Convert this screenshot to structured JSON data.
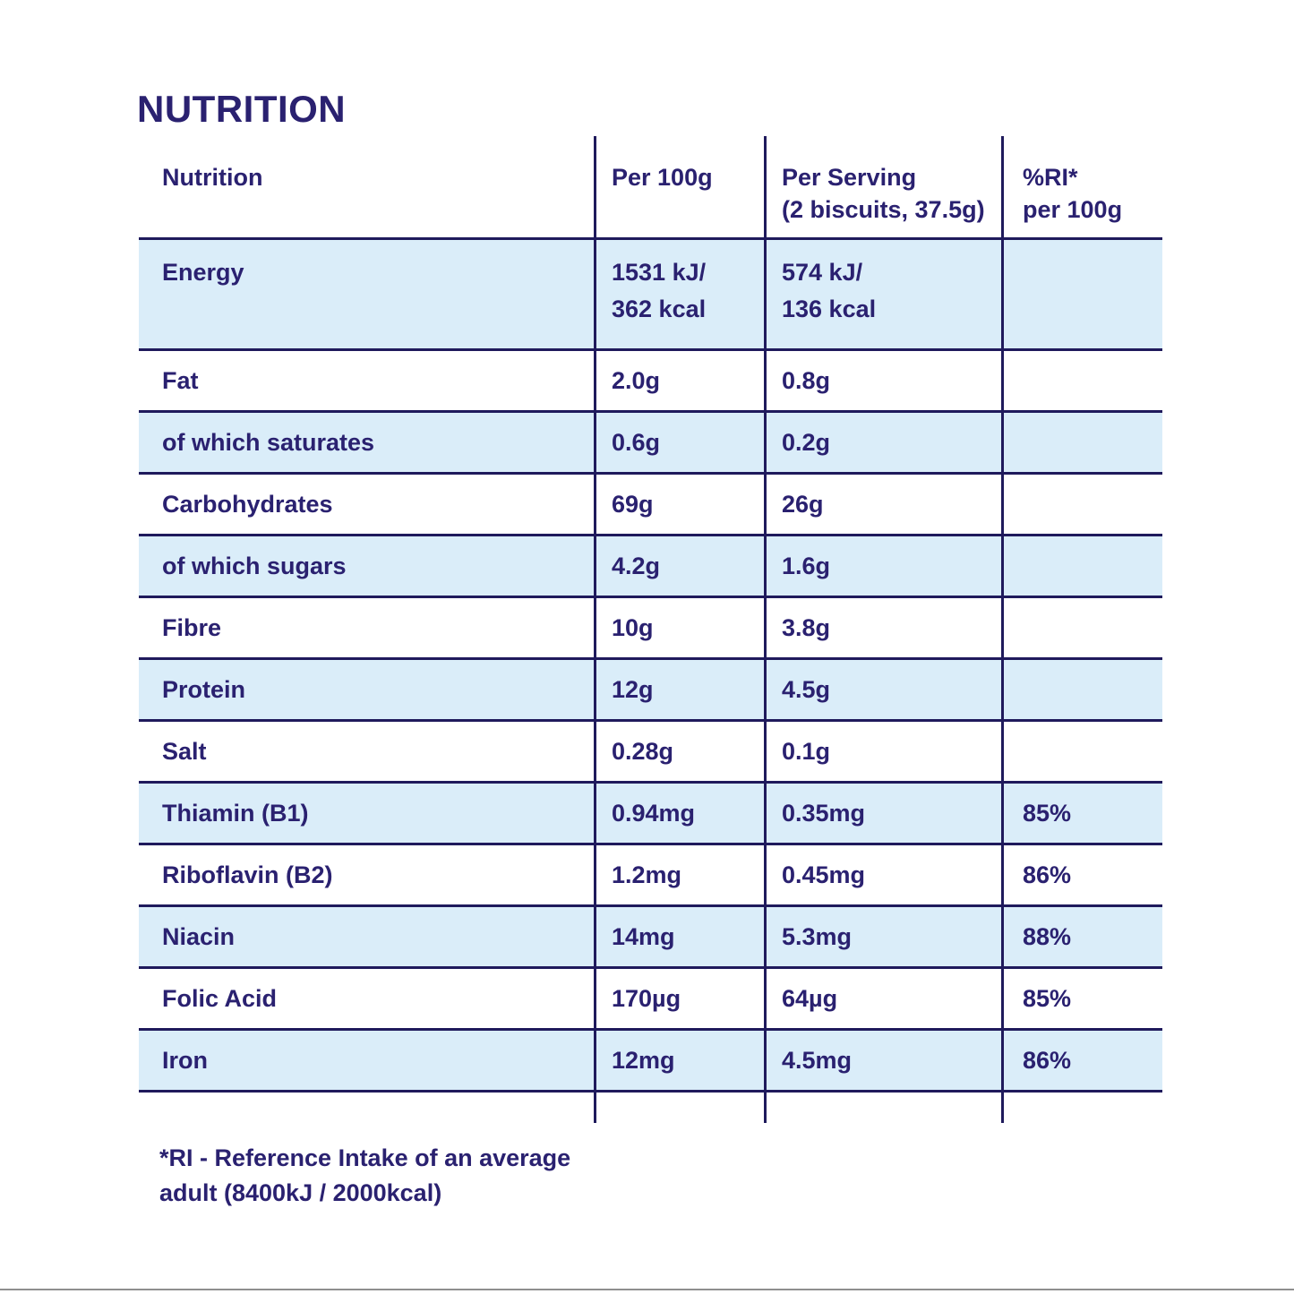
{
  "title": "NUTRITION",
  "colors": {
    "text": "#2a2170",
    "line": "#1f1a5c",
    "row_highlight": "#daedf9",
    "background": "#ffffff",
    "bottom_edge": "#8f8f8f"
  },
  "table": {
    "headers": [
      "Nutrition",
      "Per 100g",
      "Per Serving\n(2 biscuits, 37.5g)",
      "%RI*\nper 100g"
    ],
    "rows": [
      {
        "label": "Energy",
        "per_100g": "1531 kJ/\n362 kcal",
        "per_serving": "574 kJ/\n136 kcal",
        "ri_per_100g": ""
      },
      {
        "label": "Fat",
        "per_100g": "2.0g",
        "per_serving": "0.8g",
        "ri_per_100g": ""
      },
      {
        "label": "of which saturates",
        "per_100g": "0.6g",
        "per_serving": "0.2g",
        "ri_per_100g": ""
      },
      {
        "label": "Carbohydrates",
        "per_100g": "69g",
        "per_serving": "26g",
        "ri_per_100g": ""
      },
      {
        "label": "of which sugars",
        "per_100g": "4.2g",
        "per_serving": "1.6g",
        "ri_per_100g": ""
      },
      {
        "label": "Fibre",
        "per_100g": "10g",
        "per_serving": "3.8g",
        "ri_per_100g": ""
      },
      {
        "label": "Protein",
        "per_100g": "12g",
        "per_serving": "4.5g",
        "ri_per_100g": ""
      },
      {
        "label": "Salt",
        "per_100g": "0.28g",
        "per_serving": "0.1g",
        "ri_per_100g": ""
      },
      {
        "label": "Thiamin (B1)",
        "per_100g": "0.94mg",
        "per_serving": "0.35mg",
        "ri_per_100g": "85%"
      },
      {
        "label": "Riboflavin (B2)",
        "per_100g": "1.2mg",
        "per_serving": "0.45mg",
        "ri_per_100g": "86%"
      },
      {
        "label": "Niacin",
        "per_100g": "14mg",
        "per_serving": "5.3mg",
        "ri_per_100g": "88%"
      },
      {
        "label": "Folic Acid",
        "per_100g": "170µg",
        "per_serving": "64µg",
        "ri_per_100g": "85%"
      },
      {
        "label": "Iron",
        "per_100g": "12mg",
        "per_serving": "4.5mg",
        "ri_per_100g": "86%"
      }
    ]
  },
  "footnote": "*RI - Reference Intake of an average\nadult (8400kJ / 2000kcal)"
}
